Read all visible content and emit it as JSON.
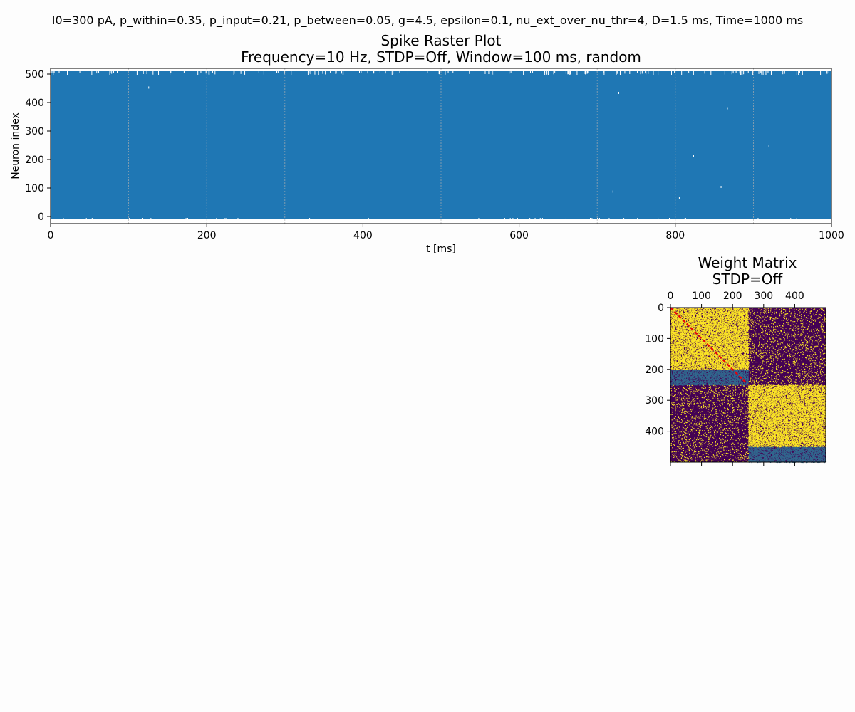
{
  "suptitle": "I0=300 pA, p_within=0.35, p_input=0.21, p_between=0.05, g=4.5, epsilon=0.1, nu_ext_over_nu_thr=4, D=1.5 ms, Time=1000 ms",
  "colors": {
    "spike": "#1f77b4",
    "grid": "#b0b0b0",
    "matrix_low": "#440154",
    "matrix_mid": "#31688e",
    "matrix_high": "#fde725",
    "diagonal": "#e8000b"
  },
  "chart_data": [
    {
      "type": "scatter",
      "title": "Spike Raster Plot",
      "subtitle": "Frequency=10 Hz, STDP=Off, Window=100 ms, random",
      "xlabel": "t [ms]",
      "ylabel": "Neuron index",
      "xlim": [
        0,
        1000
      ],
      "ylim": [
        -25,
        520
      ],
      "xticks": [
        0,
        200,
        400,
        600,
        800,
        1000
      ],
      "yticks": [
        0,
        100,
        200,
        300,
        400,
        500
      ],
      "grid_x": [
        100,
        200,
        300,
        400,
        500,
        600,
        700,
        800,
        900
      ],
      "neuron_range": [
        0,
        500
      ],
      "grid": true
    },
    {
      "type": "heatmap",
      "title": "Weight Matrix",
      "subtitle": "STDP=Off",
      "size": 500,
      "xticks": [
        0,
        100,
        200,
        300,
        400
      ],
      "yticks": [
        0,
        100,
        200,
        300,
        400
      ],
      "blocks": [
        {
          "rows": [
            0,
            200
          ],
          "cols": [
            0,
            250
          ],
          "level": "high",
          "density": 0.35
        },
        {
          "rows": [
            200,
            250
          ],
          "cols": [
            0,
            250
          ],
          "level": "mid",
          "density": 0.35
        },
        {
          "rows": [
            0,
            250
          ],
          "cols": [
            250,
            500
          ],
          "level": "high",
          "density": 0.05
        },
        {
          "rows": [
            250,
            450
          ],
          "cols": [
            250,
            500
          ],
          "level": "high",
          "density": 0.35
        },
        {
          "rows": [
            450,
            500
          ],
          "cols": [
            250,
            500
          ],
          "level": "mid",
          "density": 0.35
        },
        {
          "rows": [
            250,
            500
          ],
          "cols": [
            0,
            250
          ],
          "level": "high",
          "density": 0.05
        }
      ],
      "diagonal": [
        0,
        250
      ]
    }
  ]
}
